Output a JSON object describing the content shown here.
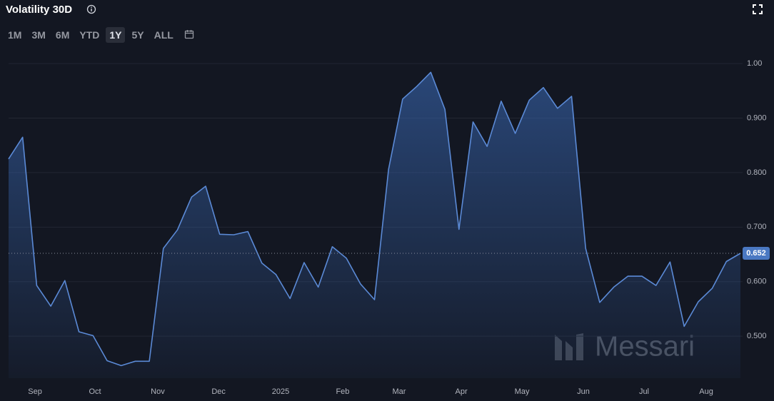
{
  "chart_data": {
    "type": "area",
    "title": "Volatility 30D",
    "ranges": [
      "1M",
      "3M",
      "6M",
      "YTD",
      "1Y",
      "5Y",
      "ALL"
    ],
    "selected_range": 4,
    "watermark": "Messari",
    "color": "#5b8ad6",
    "grid": true,
    "x": [
      0,
      1,
      2,
      3,
      4,
      5,
      6,
      7,
      8,
      9,
      10,
      11,
      12,
      13,
      14,
      15,
      16,
      17,
      18,
      19,
      20,
      21,
      22,
      23,
      24,
      25,
      26,
      27,
      28,
      29,
      30,
      31,
      32,
      33,
      34,
      35,
      36,
      37,
      38,
      39,
      40,
      41,
      42,
      43,
      44,
      45,
      46,
      47,
      48,
      49,
      50,
      51,
      52
    ],
    "values": [
      0.825,
      0.865,
      0.593,
      0.555,
      0.602,
      0.508,
      0.501,
      0.455,
      0.446,
      0.454,
      0.454,
      0.661,
      0.695,
      0.755,
      0.775,
      0.687,
      0.686,
      0.692,
      0.634,
      0.613,
      0.569,
      0.635,
      0.59,
      0.664,
      0.643,
      0.596,
      0.567,
      0.806,
      0.935,
      0.958,
      0.984,
      0.916,
      0.696,
      0.893,
      0.848,
      0.931,
      0.872,
      0.933,
      0.956,
      0.918,
      0.94,
      0.661,
      0.562,
      0.59,
      0.61,
      0.61,
      0.593,
      0.636,
      0.518,
      0.563,
      0.588,
      0.637,
      0.652
    ],
    "current_value": 0.652,
    "xlim": [
      0,
      52
    ],
    "xticks": [
      {
        "value": 1.88,
        "label": "Sep"
      },
      {
        "value": 6.14,
        "label": "Oct"
      },
      {
        "value": 10.6,
        "label": "Nov"
      },
      {
        "value": 14.92,
        "label": "Dec"
      },
      {
        "value": 19.33,
        "label": "2025"
      },
      {
        "value": 23.74,
        "label": "Feb"
      },
      {
        "value": 27.75,
        "label": "Mar"
      },
      {
        "value": 32.17,
        "label": "Apr"
      },
      {
        "value": 36.48,
        "label": "May"
      },
      {
        "value": 40.84,
        "label": "Jun"
      },
      {
        "value": 45.15,
        "label": "Jul"
      },
      {
        "value": 49.57,
        "label": "Aug"
      }
    ],
    "ylim": [
      0.423,
      1.025
    ],
    "yticks": [
      {
        "value": 0.5,
        "label": "0.500"
      },
      {
        "value": 0.6,
        "label": "0.600"
      },
      {
        "value": 0.7,
        "label": "0.700"
      },
      {
        "value": 0.8,
        "label": "0.800"
      },
      {
        "value": 0.9,
        "label": "0.900"
      },
      {
        "value": 1,
        "label": "1.00"
      }
    ]
  }
}
